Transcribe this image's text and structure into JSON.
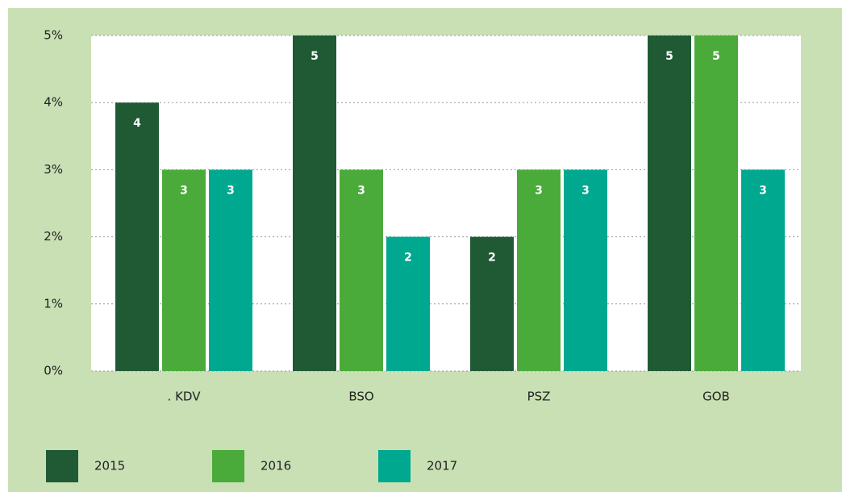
{
  "chart_data": {
    "type": "bar",
    "categories": [
      ". KDV",
      "BSO",
      "PSZ",
      "GOB"
    ],
    "series": [
      {
        "name": "2015",
        "color": "#1f5a35",
        "values": [
          4,
          5,
          2,
          5
        ]
      },
      {
        "name": "2016",
        "color": "#4aab3a",
        "values": [
          3,
          3,
          3,
          5
        ]
      },
      {
        "name": "2017",
        "color": "#00a88f",
        "values": [
          3,
          2,
          3,
          3
        ]
      }
    ],
    "ylim": [
      0,
      5
    ],
    "yticks": [
      {
        "value": 0,
        "label": "0%"
      },
      {
        "value": 1,
        "label": "1%"
      },
      {
        "value": 2,
        "label": "2%"
      },
      {
        "value": 3,
        "label": "3%"
      },
      {
        "value": 4,
        "label": "4%"
      },
      {
        "value": 5,
        "label": "5%"
      }
    ],
    "grid": true
  }
}
